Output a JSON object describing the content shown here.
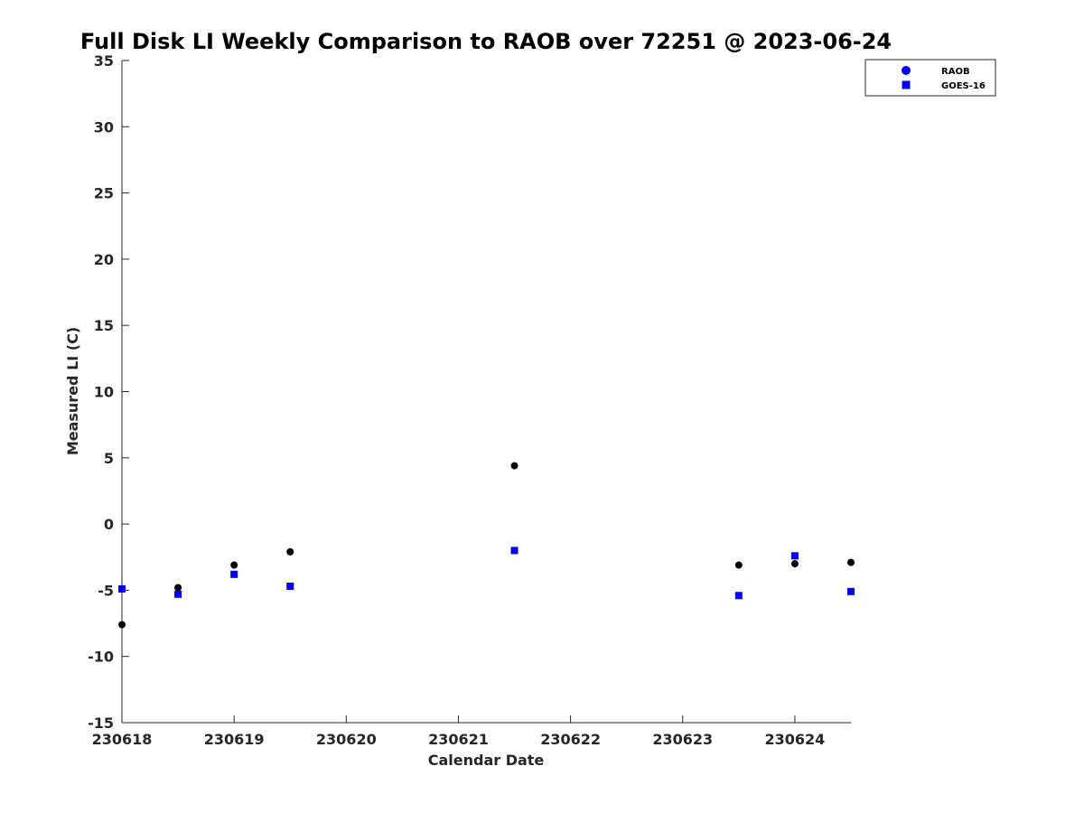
{
  "chart_data": {
    "type": "scatter",
    "title": "Full Disk LI Weekly Comparison to RAOB over 72251 @ 2023-06-24",
    "xlabel": "Calendar Date",
    "ylabel": "Measured LI (C)",
    "xlim": [
      0,
      6.5
    ],
    "ylim": [
      -15,
      35
    ],
    "x_ticks": [
      {
        "value": 0,
        "label": "230618"
      },
      {
        "value": 1,
        "label": "230619"
      },
      {
        "value": 2,
        "label": "230620"
      },
      {
        "value": 3,
        "label": "230621"
      },
      {
        "value": 4,
        "label": "230622"
      },
      {
        "value": 5,
        "label": "230623"
      },
      {
        "value": 6,
        "label": "230624"
      }
    ],
    "y_ticks": [
      {
        "value": 35,
        "label": "35"
      },
      {
        "value": 30,
        "label": "30"
      },
      {
        "value": 25,
        "label": "25"
      },
      {
        "value": 20,
        "label": "20"
      },
      {
        "value": 15,
        "label": "15"
      },
      {
        "value": 10,
        "label": "10"
      },
      {
        "value": 5,
        "label": "5"
      },
      {
        "value": 0,
        "label": "0"
      },
      {
        "value": -5,
        "label": "-5"
      },
      {
        "value": -10,
        "label": "-10"
      },
      {
        "value": -15,
        "label": "-15"
      }
    ],
    "legend_position": "top-right",
    "series": [
      {
        "name": "RAOB",
        "marker": "circle",
        "color": "#000000",
        "legend_color": "#0000ff",
        "points": [
          {
            "x": 0.0,
            "y": -7.6
          },
          {
            "x": 0.5,
            "y": -4.8
          },
          {
            "x": 1.0,
            "y": -3.1
          },
          {
            "x": 1.5,
            "y": -2.1
          },
          {
            "x": 3.5,
            "y": 4.4
          },
          {
            "x": 5.5,
            "y": -3.1
          },
          {
            "x": 6.0,
            "y": -3.0
          },
          {
            "x": 6.5,
            "y": -2.9
          }
        ]
      },
      {
        "name": "GOES-16",
        "marker": "square",
        "color": "#0000ee",
        "legend_color": "#0000ee",
        "points": [
          {
            "x": 0.0,
            "y": -4.9
          },
          {
            "x": 0.5,
            "y": -5.3
          },
          {
            "x": 1.0,
            "y": -3.8
          },
          {
            "x": 1.5,
            "y": -4.7
          },
          {
            "x": 3.5,
            "y": -2.0
          },
          {
            "x": 5.5,
            "y": -5.4
          },
          {
            "x": 6.0,
            "y": -2.4
          },
          {
            "x": 6.5,
            "y": -5.1
          }
        ]
      }
    ]
  }
}
